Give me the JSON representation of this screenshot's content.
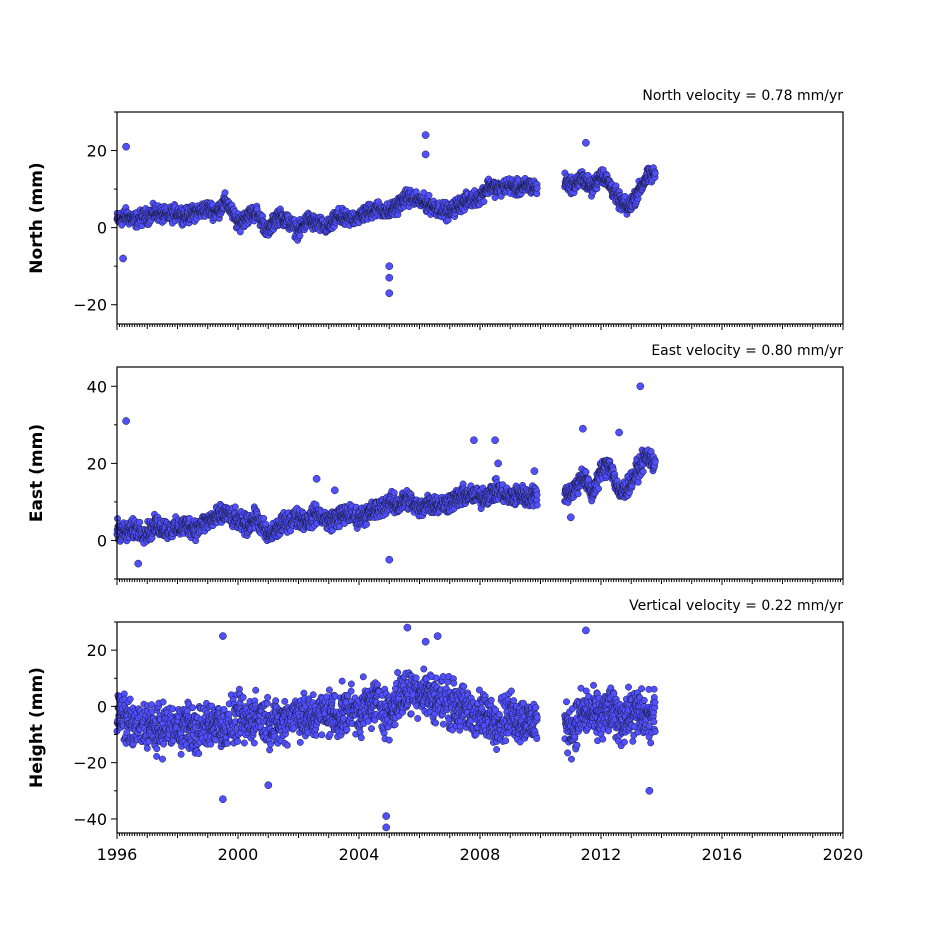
{
  "chart_data": {
    "type": "scatter",
    "xlim": [
      1996,
      2020
    ],
    "x_ticks": [
      "1996",
      "2000",
      "2004",
      "2008",
      "2012",
      "2016",
      "2020"
    ],
    "panels": [
      {
        "id": "north",
        "ylabel": "North (mm)",
        "velocity_label": "North velocity = 0.78 mm/yr",
        "ylim": [
          -25,
          30
        ],
        "y_ticks": [
          "−20",
          "0",
          "20"
        ],
        "y_tick_values": [
          -20,
          0,
          20
        ],
        "x": [
          1996.0,
          1996.3,
          1996.6,
          1997.0,
          1997.3,
          1997.6,
          1998.0,
          1998.3,
          1998.6,
          1999.0,
          1999.3,
          1999.6,
          2000.0,
          2000.3,
          2000.6,
          2001.0,
          2001.3,
          2001.6,
          2002.0,
          2002.3,
          2002.6,
          2003.0,
          2003.3,
          2003.6,
          2004.0,
          2004.3,
          2004.6,
          2005.0,
          2005.3,
          2005.6,
          2006.0,
          2006.3,
          2006.6,
          2007.0,
          2007.3,
          2007.6,
          2008.0,
          2008.3,
          2008.6,
          2009.0,
          2009.3,
          2009.6,
          2009.9,
          2010.8,
          2011.1,
          2011.4,
          2011.7,
          2012.0,
          2012.3,
          2012.6,
          2012.9,
          2013.2,
          2013.5,
          2013.8
        ],
        "y": [
          2,
          3,
          2,
          3,
          4,
          3,
          4,
          3,
          4,
          5,
          4,
          7,
          1,
          3,
          4,
          -1,
          3,
          2,
          -1,
          2,
          1,
          0,
          3,
          2,
          3,
          4,
          5,
          4,
          6,
          8,
          7,
          6,
          5,
          4,
          6,
          7,
          8,
          11,
          10,
          11,
          10,
          11,
          10,
          12,
          11,
          13,
          10,
          14,
          11,
          7,
          5,
          9,
          13,
          14
        ],
        "outliers_x": [
          1996.3,
          1996.2,
          2005.0,
          2005.0,
          2005.0,
          2006.2,
          2006.2,
          2011.5
        ],
        "outliers_y": [
          21,
          -8,
          -10,
          -13,
          -17,
          24,
          19,
          22
        ]
      },
      {
        "id": "east",
        "ylabel": "East (mm)",
        "velocity_label": "East velocity = 0.80 mm/yr",
        "ylim": [
          -10,
          45
        ],
        "y_ticks": [
          "0",
          "20",
          "40"
        ],
        "y_tick_values": [
          0,
          20,
          40
        ],
        "x": [
          1996.0,
          1996.3,
          1996.6,
          1997.0,
          1997.3,
          1997.6,
          1998.0,
          1998.3,
          1998.6,
          1999.0,
          1999.3,
          1999.6,
          2000.0,
          2000.3,
          2000.6,
          2001.0,
          2001.3,
          2001.6,
          2002.0,
          2002.3,
          2002.6,
          2003.0,
          2003.3,
          2003.6,
          2004.0,
          2004.3,
          2004.6,
          2005.0,
          2005.3,
          2005.6,
          2006.0,
          2006.3,
          2006.6,
          2007.0,
          2007.3,
          2007.6,
          2008.0,
          2008.3,
          2008.6,
          2009.0,
          2009.3,
          2009.6,
          2009.9,
          2010.8,
          2011.1,
          2011.4,
          2011.7,
          2012.0,
          2012.3,
          2012.6,
          2012.9,
          2013.2,
          2013.5,
          2013.8
        ],
        "y": [
          3,
          2,
          3,
          2,
          4,
          3,
          3,
          4,
          3,
          5,
          6,
          7,
          5,
          4,
          6,
          1,
          3,
          5,
          6,
          5,
          7,
          5,
          6,
          7,
          6,
          7,
          8,
          10,
          9,
          11,
          8,
          10,
          9,
          10,
          11,
          12,
          11,
          12,
          13,
          11,
          12,
          11,
          12,
          12,
          13,
          17,
          12,
          18,
          20,
          12,
          14,
          18,
          22,
          20
        ],
        "outliers_x": [
          1996.3,
          1996.7,
          2002.6,
          2003.2,
          2005.0,
          2007.8,
          2008.5,
          2008.6,
          2009.8,
          2011.0,
          2011.4,
          2012.6,
          2013.3
        ],
        "outliers_y": [
          31,
          -6,
          16,
          13,
          -5,
          26,
          26,
          20,
          18,
          6,
          29,
          28,
          40
        ],
        "spread": 2.5
      },
      {
        "id": "height",
        "ylabel": "Height (mm)",
        "velocity_label": "Vertical velocity = 0.22 mm/yr",
        "ylim": [
          -45,
          30
        ],
        "y_ticks": [
          "−40",
          "−20",
          "0",
          "20"
        ],
        "y_tick_values": [
          -40,
          -20,
          0,
          20
        ],
        "x": [
          1996.0,
          1996.3,
          1996.6,
          1997.0,
          1997.3,
          1997.6,
          1998.0,
          1998.3,
          1998.6,
          1999.0,
          1999.3,
          1999.6,
          2000.0,
          2000.3,
          2000.6,
          2001.0,
          2001.3,
          2001.6,
          2002.0,
          2002.3,
          2002.6,
          2003.0,
          2003.3,
          2003.6,
          2004.0,
          2004.3,
          2004.6,
          2005.0,
          2005.3,
          2005.6,
          2006.0,
          2006.3,
          2006.6,
          2007.0,
          2007.3,
          2007.6,
          2008.0,
          2008.3,
          2008.6,
          2009.0,
          2009.3,
          2009.6,
          2009.9,
          2010.8,
          2011.1,
          2011.4,
          2011.7,
          2012.0,
          2012.3,
          2012.6,
          2012.9,
          2013.2,
          2013.5,
          2013.8
        ],
        "y": [
          -3,
          -5,
          -8,
          -6,
          -9,
          -7,
          -8,
          -6,
          -9,
          -7,
          -5,
          -8,
          -4,
          -6,
          -3,
          -5,
          -7,
          -4,
          -2,
          -5,
          -3,
          -2,
          -4,
          -1,
          -2,
          0,
          2,
          -3,
          3,
          5,
          6,
          4,
          3,
          1,
          0,
          -2,
          -3,
          -4,
          -5,
          -3,
          -4,
          -6,
          -5,
          -7,
          -8,
          -2,
          -3,
          -4,
          -1,
          -5,
          -3,
          -2,
          -4,
          -3
        ],
        "outliers_x": [
          1999.5,
          2001.0,
          2004.9,
          2004.9,
          2005.6,
          2006.2,
          2006.6,
          2011.5,
          1999.5,
          2013.6
        ],
        "outliers_y": [
          25,
          -28,
          -39,
          -43,
          28,
          23,
          25,
          27,
          -33,
          -30
        ],
        "spread": 8
      }
    ]
  }
}
